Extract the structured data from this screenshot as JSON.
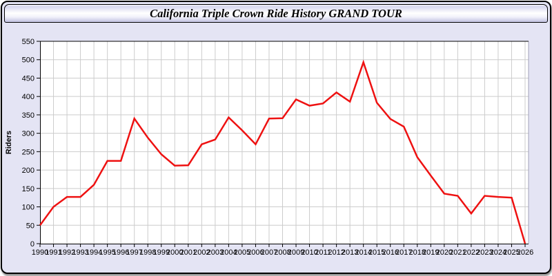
{
  "window": {
    "title": "California Triple Crown Ride History GRAND TOUR"
  },
  "chart_data": {
    "type": "line",
    "title": "California Triple Crown Ride History GRAND TOUR",
    "xlabel": "",
    "ylabel": "Riders",
    "ylim": [
      0,
      550
    ],
    "ytick_step": 50,
    "grid": true,
    "legend_position": "none",
    "x": [
      1990,
      1991,
      1992,
      1993,
      1994,
      1995,
      1996,
      1997,
      1998,
      1999,
      2000,
      2001,
      2002,
      2003,
      2004,
      2005,
      2006,
      2007,
      2008,
      2009,
      2010,
      2011,
      2012,
      2013,
      2014,
      2015,
      2016,
      2017,
      2018,
      2019,
      2020,
      2021,
      2022,
      2023,
      2024,
      2025,
      2026
    ],
    "series": [
      {
        "name": "Riders",
        "values": [
          50,
          100,
          127,
          127,
          160,
          225,
          225,
          340,
          288,
          243,
          212,
          213,
          270,
          283,
          343,
          308,
          270,
          340,
          341,
          392,
          375,
          381,
          411,
          386,
          493,
          383,
          339,
          318,
          235,
          185,
          136,
          130,
          82,
          130,
          127,
          125,
          0
        ]
      }
    ]
  },
  "colors": {
    "line": "#ee1111",
    "panel_background": "#e4e4f4",
    "plot_background": "#ffffff",
    "grid": "#cccccc",
    "axis": "#000000",
    "right_border": "#a0a0b8",
    "tick_label": "#000000"
  }
}
